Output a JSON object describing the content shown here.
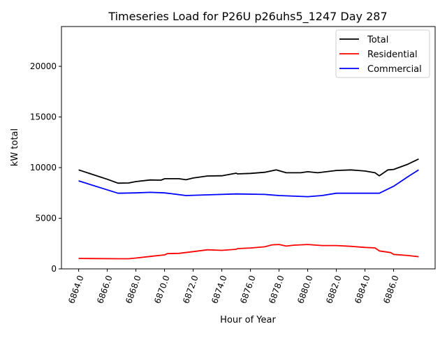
{
  "chart_data": {
    "type": "line",
    "title": "Timeseries Load for P26U p26uhs5_1247  Day 287",
    "xlabel": "Hour of Year",
    "ylabel": "kW total",
    "xlim": [
      6862.8,
      6888.9
    ],
    "ylim": [
      0,
      23930
    ],
    "xticks": [
      6864,
      6866,
      6868,
      6870,
      6872,
      6874,
      6876,
      6878,
      6880,
      6882,
      6884,
      6886
    ],
    "xtick_labels": [
      "6864.0",
      "6866.0",
      "6868.0",
      "6870.0",
      "6872.0",
      "6874.0",
      "6876.0",
      "6878.0",
      "6880.0",
      "6882.0",
      "6884.0",
      "6886.0"
    ],
    "yticks": [
      0,
      5000,
      10000,
      15000,
      20000
    ],
    "ytick_labels": [
      "0",
      "5000",
      "10000",
      "15000",
      "20000"
    ],
    "grid": false,
    "legend_position": "top-right",
    "series": [
      {
        "name": "Total",
        "color": "#000000",
        "x": [
          6864,
          6865,
          6866,
          6866.75,
          6867.5,
          6868,
          6869,
          6869.75,
          6870,
          6871,
          6871.5,
          6872,
          6873,
          6874,
          6875,
          6875.1,
          6876,
          6877,
          6877.8,
          6878.5,
          6879.5,
          6880,
          6880.7,
          6882,
          6883,
          6884,
          6884.7,
          6885,
          6885.6,
          6886,
          6887,
          6887.75
        ],
        "y": [
          9770,
          9310,
          8850,
          8460,
          8480,
          8620,
          8780,
          8760,
          8900,
          8900,
          8800,
          8970,
          9170,
          9190,
          9450,
          9380,
          9430,
          9540,
          9770,
          9490,
          9490,
          9590,
          9490,
          9720,
          9770,
          9660,
          9490,
          9190,
          9770,
          9820,
          10340,
          10850
        ]
      },
      {
        "name": "Residential",
        "color": "#ff0000",
        "x": [
          6864,
          6866.75,
          6867.5,
          6868,
          6869,
          6870,
          6870.2,
          6871,
          6872,
          6873,
          6874,
          6875,
          6875.1,
          6876,
          6877,
          6877.5,
          6878,
          6878.5,
          6879,
          6880,
          6881,
          6882,
          6883,
          6884,
          6884.7,
          6885,
          6885.8,
          6886,
          6887,
          6887.75
        ],
        "y": [
          1030,
          1000,
          1000,
          1070,
          1230,
          1380,
          1500,
          1530,
          1700,
          1880,
          1830,
          1930,
          2000,
          2060,
          2180,
          2370,
          2410,
          2250,
          2340,
          2410,
          2300,
          2300,
          2230,
          2120,
          2070,
          1770,
          1610,
          1430,
          1320,
          1200
        ]
      },
      {
        "name": "Commercial",
        "color": "#0000ff",
        "x": [
          6864,
          6866.75,
          6868,
          6869,
          6870,
          6870.5,
          6871.5,
          6873,
          6875,
          6877,
          6878,
          6880,
          6881,
          6882,
          6885,
          6886,
          6887,
          6887.75
        ],
        "y": [
          8690,
          7470,
          7500,
          7560,
          7500,
          7420,
          7240,
          7310,
          7400,
          7350,
          7240,
          7130,
          7240,
          7470,
          7470,
          8160,
          9100,
          9770
        ]
      }
    ]
  }
}
